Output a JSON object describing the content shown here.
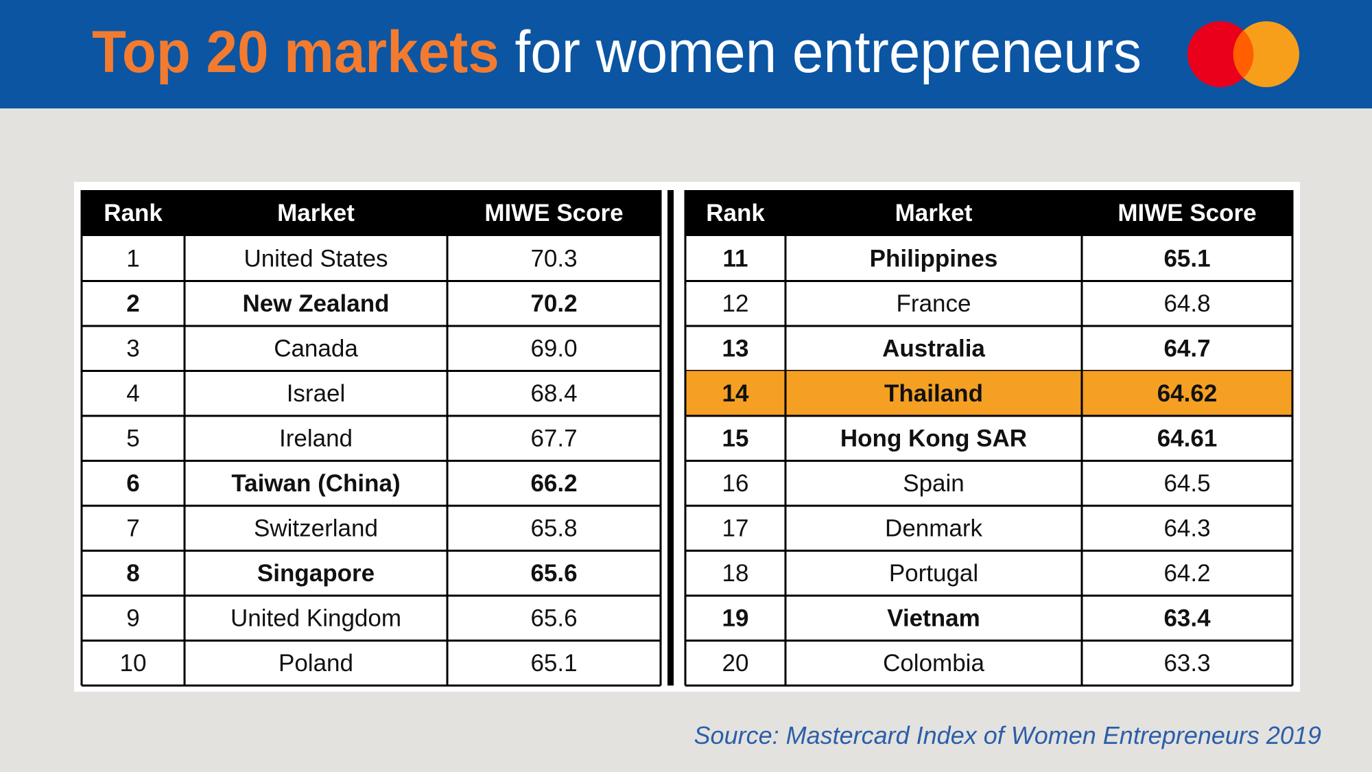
{
  "header": {
    "title_highlight": "Top 20 markets",
    "title_rest": "for women entrepreneurs"
  },
  "tables": [
    {
      "columns": [
        "Rank",
        "Market",
        "MIWE Score"
      ],
      "rows": [
        {
          "cells": [
            "1",
            "United States",
            "70.3"
          ],
          "bold": false
        },
        {
          "cells": [
            "2",
            "New Zealand",
            "70.2"
          ],
          "bold": true
        },
        {
          "cells": [
            "3",
            "Canada",
            "69.0"
          ],
          "bold": false
        },
        {
          "cells": [
            "4",
            "Israel",
            "68.4"
          ],
          "bold": false
        },
        {
          "cells": [
            "5",
            "Ireland",
            "67.7"
          ],
          "bold": false
        },
        {
          "cells": [
            "6",
            "Taiwan (China)",
            "66.2"
          ],
          "bold": true
        },
        {
          "cells": [
            "7",
            "Switzerland",
            "65.8"
          ],
          "bold": false
        },
        {
          "cells": [
            "8",
            "Singapore",
            "65.6"
          ],
          "bold": true
        },
        {
          "cells": [
            "9",
            "United Kingdom",
            "65.6"
          ],
          "bold": false
        },
        {
          "cells": [
            "10",
            "Poland",
            "65.1"
          ],
          "bold": false
        }
      ]
    },
    {
      "columns": [
        "Rank",
        "Market",
        "MIWE Score"
      ],
      "rows": [
        {
          "cells": [
            "11",
            "Philippines",
            "65.1"
          ],
          "bold": true
        },
        {
          "cells": [
            "12",
            "France",
            "64.8"
          ],
          "bold": false
        },
        {
          "cells": [
            "13",
            "Australia",
            "64.7"
          ],
          "bold": true
        },
        {
          "cells": [
            "14",
            "Thailand",
            "64.62"
          ],
          "bold": true,
          "highlight": "#f5a023"
        },
        {
          "cells": [
            "15",
            "Hong Kong SAR",
            "64.61"
          ],
          "bold": true
        },
        {
          "cells": [
            "16",
            "Spain",
            "64.5"
          ],
          "bold": false
        },
        {
          "cells": [
            "17",
            "Denmark",
            "64.3"
          ],
          "bold": false
        },
        {
          "cells": [
            "18",
            "Portugal",
            "64.2"
          ],
          "bold": false
        },
        {
          "cells": [
            "19",
            "Vietnam",
            "63.4"
          ],
          "bold": true
        },
        {
          "cells": [
            "20",
            "Colombia",
            "63.3"
          ],
          "bold": false
        }
      ]
    }
  ],
  "source": "Source: Mastercard Index of Women Entrepreneurs 2019"
}
